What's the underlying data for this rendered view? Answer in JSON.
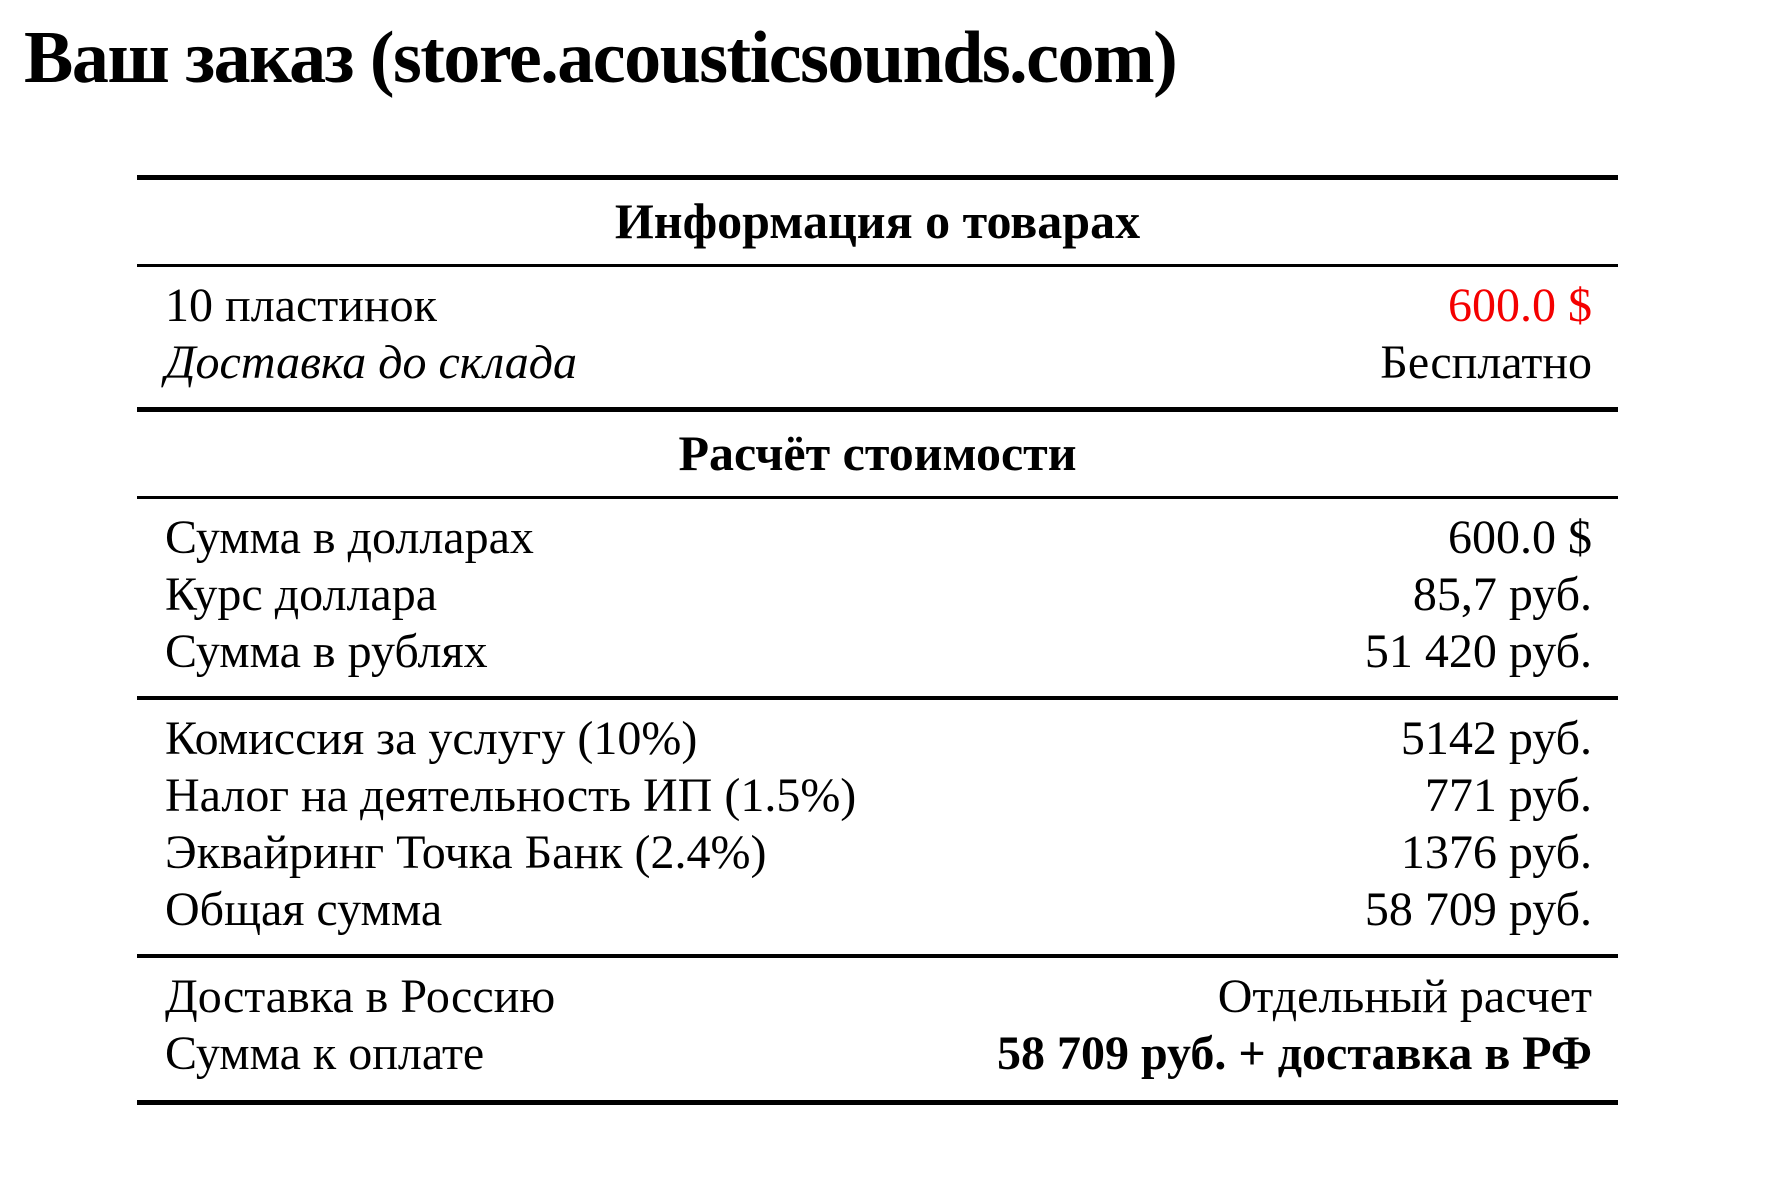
{
  "page": {
    "title": "Ваш заказ (store.acousticsounds.com)"
  },
  "colors": {
    "text": "#000000",
    "background": "#ffffff",
    "accent_red": "#f40000",
    "rule": "#000000"
  },
  "table": {
    "sections": [
      {
        "header": "Информация о товарах",
        "groups": [
          {
            "rows": [
              {
                "label": "10 пластинок",
                "value": "600.0 $"
              },
              {
                "label": "Доставка до склада",
                "value": "Бесплатно"
              }
            ]
          }
        ]
      },
      {
        "header": "Расчёт стоимости",
        "groups": [
          {
            "rows": [
              {
                "label": "Сумма в долларах",
                "value": "600.0 $"
              },
              {
                "label": "Курс доллара",
                "value": "85,7 руб."
              },
              {
                "label": "Сумма в рублях",
                "value": "51 420 руб."
              }
            ]
          },
          {
            "rows": [
              {
                "label": "Комиссия за услугу (10%)",
                "value": "5142 руб."
              },
              {
                "label": "Налог на деятельность ИП (1.5%)",
                "value": "771 руб."
              },
              {
                "label": "Эквайринг Точка Банк (2.4%)",
                "value": "1376 руб."
              },
              {
                "label": "Общая сумма",
                "value": "58 709 руб."
              }
            ]
          },
          {
            "rows": [
              {
                "label": "Доставка в Россию",
                "value": "Отдельный расчет"
              },
              {
                "label": "Сумма к оплате",
                "value": "58 709 руб. + доставка в РФ"
              }
            ]
          }
        ]
      }
    ]
  }
}
